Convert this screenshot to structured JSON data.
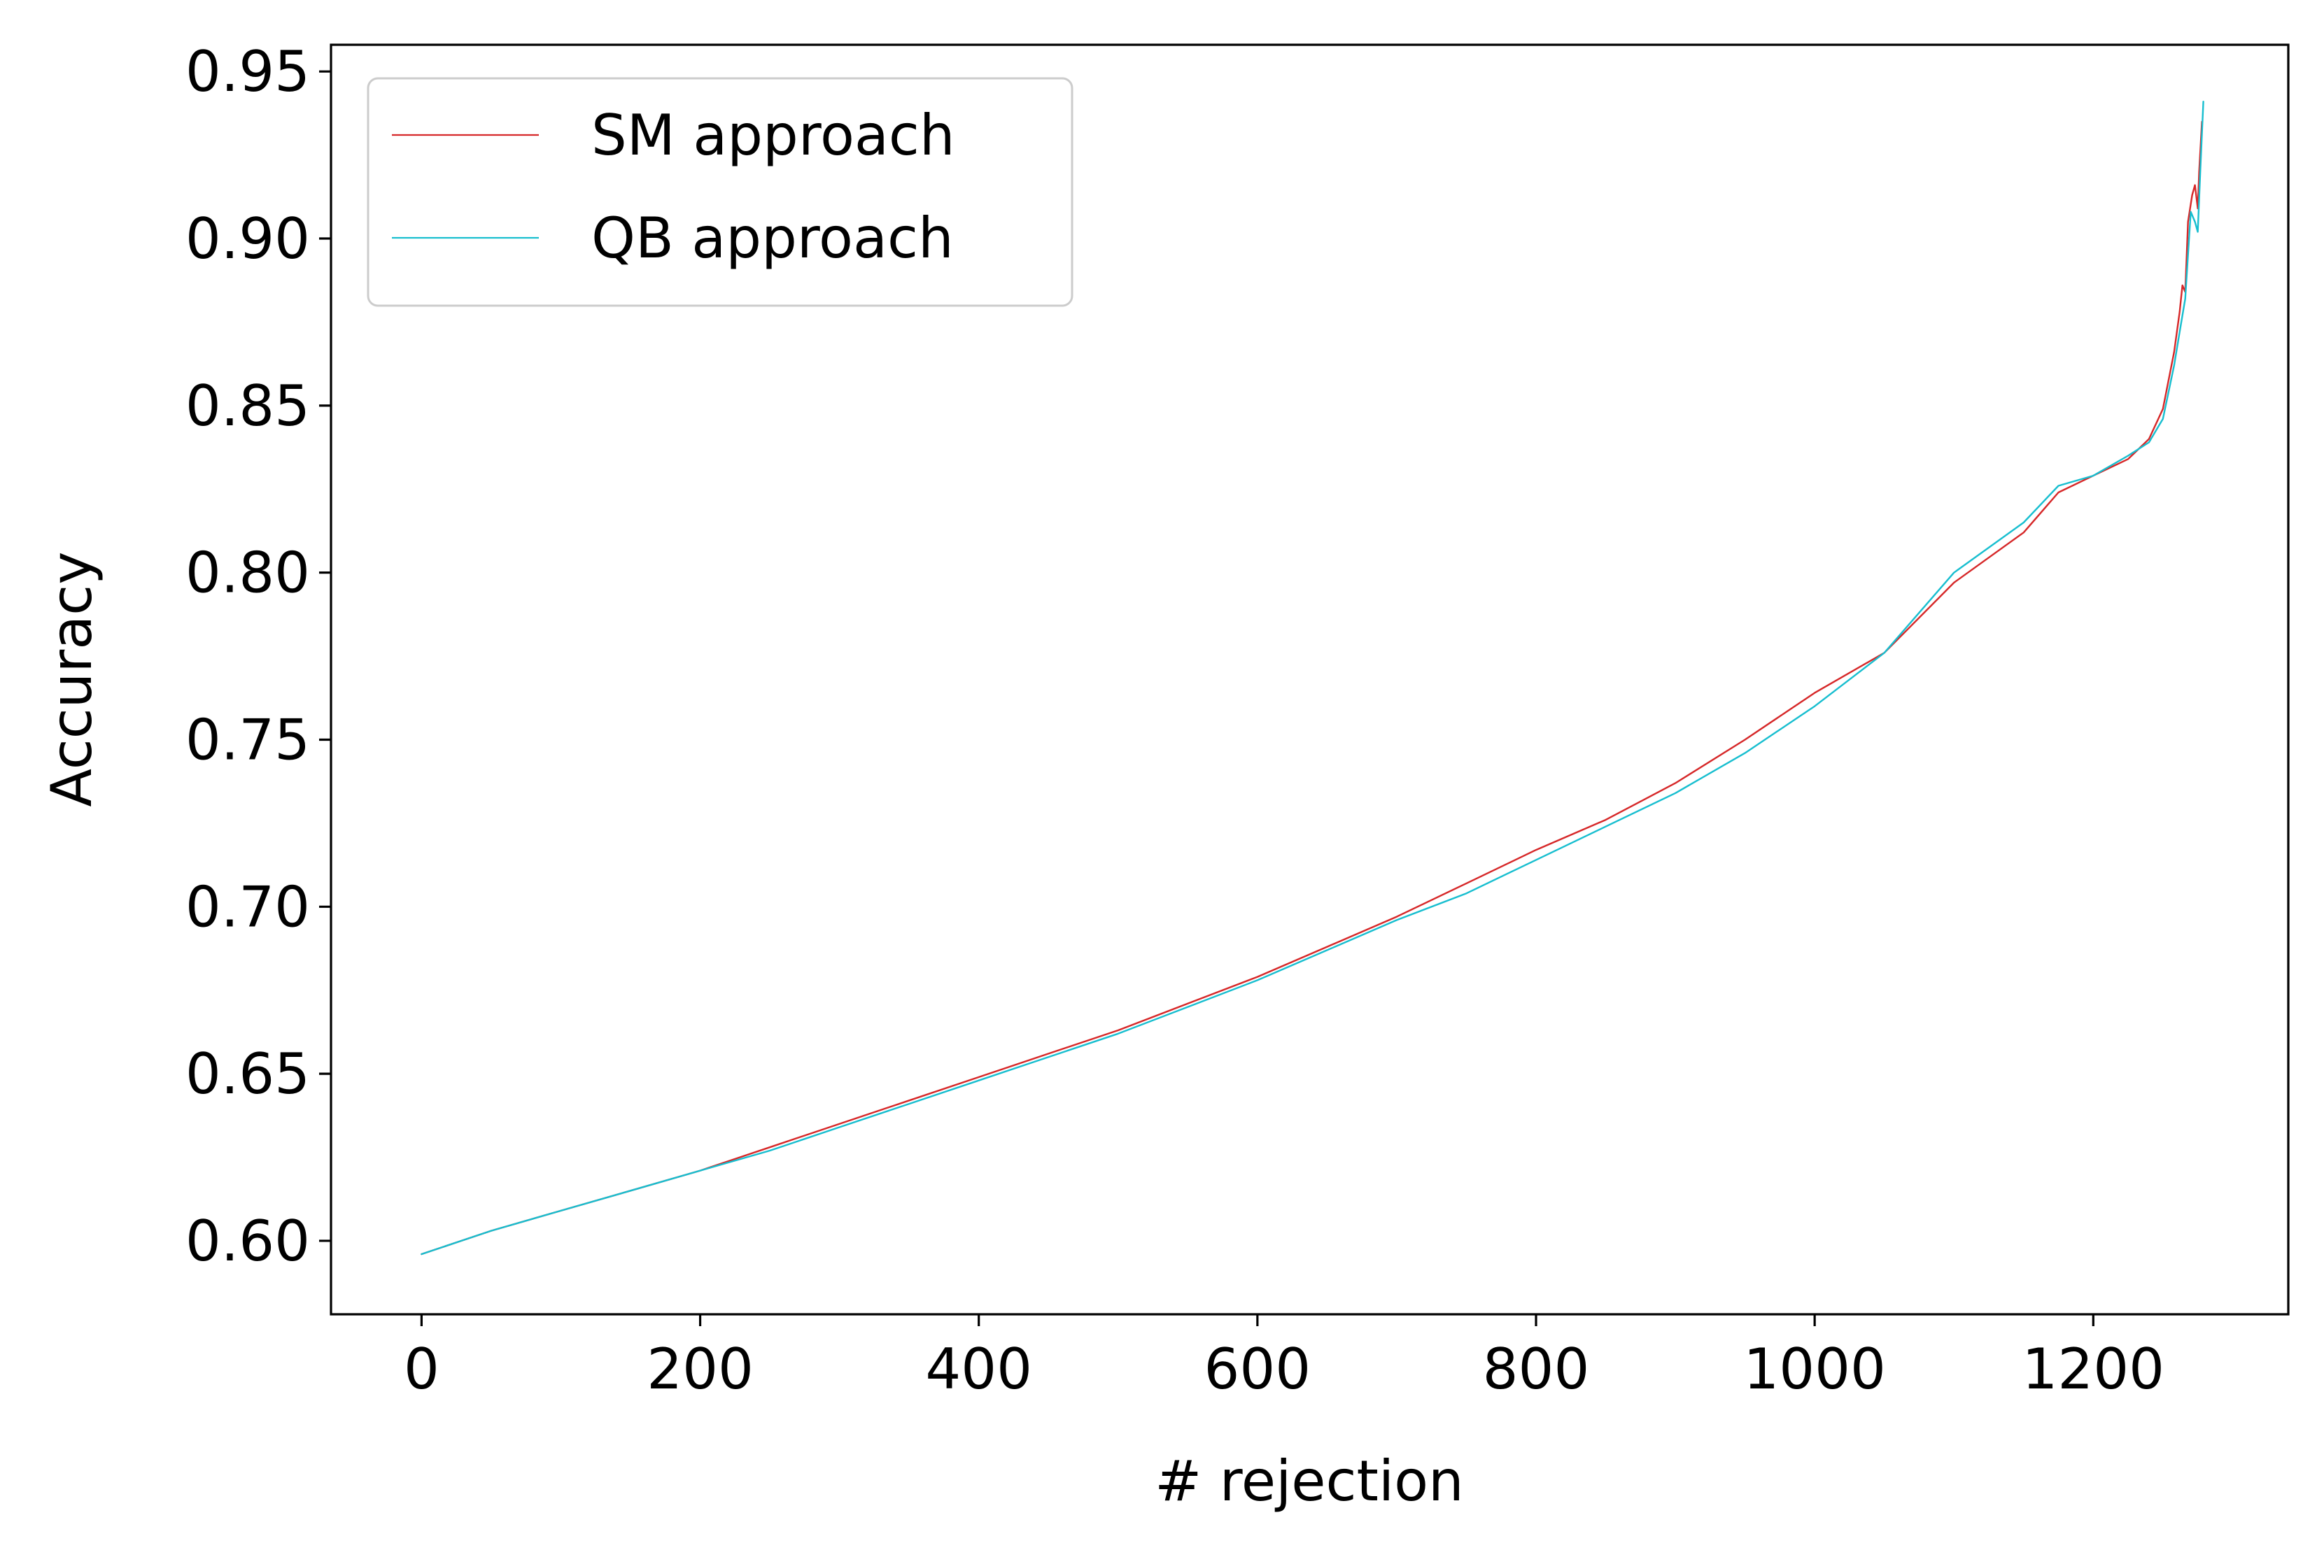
{
  "chart_data": {
    "type": "line",
    "title": "",
    "xlabel": "# rejection",
    "ylabel": "Accuracy",
    "xlim": [
      -65,
      1340
    ],
    "ylim": [
      0.578,
      0.958
    ],
    "xticks": [
      {
        "value": 0,
        "label": "0"
      },
      {
        "value": 200,
        "label": "200"
      },
      {
        "value": 400,
        "label": "400"
      },
      {
        "value": 600,
        "label": "600"
      },
      {
        "value": 800,
        "label": "800"
      },
      {
        "value": 1000,
        "label": "1000"
      },
      {
        "value": 1200,
        "label": "1200"
      }
    ],
    "yticks": [
      {
        "value": 0.6,
        "label": "0.60"
      },
      {
        "value": 0.65,
        "label": "0.65"
      },
      {
        "value": 0.7,
        "label": "0.70"
      },
      {
        "value": 0.75,
        "label": "0.75"
      },
      {
        "value": 0.8,
        "label": "0.80"
      },
      {
        "value": 0.85,
        "label": "0.85"
      },
      {
        "value": 0.9,
        "label": "0.90"
      },
      {
        "value": 0.95,
        "label": "0.95"
      }
    ],
    "grid": false,
    "legend_position": "top-left",
    "series": [
      {
        "name": "SM approach",
        "color": "#d62728",
        "points": [
          [
            0,
            0.596
          ],
          [
            50,
            0.603
          ],
          [
            100,
            0.609
          ],
          [
            150,
            0.615
          ],
          [
            200,
            0.621
          ],
          [
            250,
            0.628
          ],
          [
            300,
            0.635
          ],
          [
            350,
            0.642
          ],
          [
            400,
            0.649
          ],
          [
            450,
            0.656
          ],
          [
            500,
            0.663
          ],
          [
            550,
            0.671
          ],
          [
            600,
            0.679
          ],
          [
            650,
            0.688
          ],
          [
            700,
            0.697
          ],
          [
            750,
            0.707
          ],
          [
            800,
            0.717
          ],
          [
            850,
            0.726
          ],
          [
            900,
            0.737
          ],
          [
            950,
            0.75
          ],
          [
            1000,
            0.764
          ],
          [
            1050,
            0.776
          ],
          [
            1100,
            0.797
          ],
          [
            1150,
            0.812
          ],
          [
            1175,
            0.824
          ],
          [
            1200,
            0.829
          ],
          [
            1225,
            0.834
          ],
          [
            1240,
            0.84
          ],
          [
            1250,
            0.849
          ],
          [
            1258,
            0.866
          ],
          [
            1262,
            0.878
          ],
          [
            1264,
            0.886
          ],
          [
            1266,
            0.884
          ],
          [
            1268,
            0.905
          ],
          [
            1271,
            0.913
          ],
          [
            1273,
            0.916
          ],
          [
            1275,
            0.909
          ],
          [
            1276,
            0.92
          ],
          [
            1278,
            0.935
          ]
        ]
      },
      {
        "name": "QB approach",
        "color": "#17becf",
        "points": [
          [
            0,
            0.596
          ],
          [
            50,
            0.603
          ],
          [
            100,
            0.609
          ],
          [
            150,
            0.615
          ],
          [
            200,
            0.621
          ],
          [
            250,
            0.627
          ],
          [
            300,
            0.634
          ],
          [
            350,
            0.641
          ],
          [
            400,
            0.648
          ],
          [
            450,
            0.655
          ],
          [
            500,
            0.662
          ],
          [
            550,
            0.67
          ],
          [
            600,
            0.678
          ],
          [
            650,
            0.687
          ],
          [
            700,
            0.696
          ],
          [
            750,
            0.704
          ],
          [
            800,
            0.714
          ],
          [
            850,
            0.724
          ],
          [
            900,
            0.734
          ],
          [
            950,
            0.746
          ],
          [
            1000,
            0.76
          ],
          [
            1050,
            0.776
          ],
          [
            1100,
            0.8
          ],
          [
            1150,
            0.815
          ],
          [
            1175,
            0.826
          ],
          [
            1200,
            0.829
          ],
          [
            1225,
            0.835
          ],
          [
            1240,
            0.839
          ],
          [
            1250,
            0.846
          ],
          [
            1258,
            0.862
          ],
          [
            1262,
            0.872
          ],
          [
            1266,
            0.882
          ],
          [
            1270,
            0.908
          ],
          [
            1273,
            0.905
          ],
          [
            1275,
            0.902
          ],
          [
            1277,
            0.922
          ],
          [
            1279,
            0.941
          ]
        ]
      }
    ]
  }
}
